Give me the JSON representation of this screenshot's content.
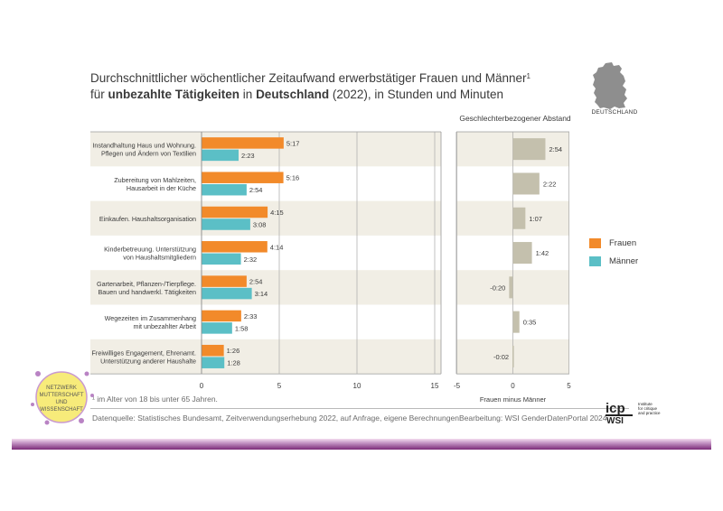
{
  "title": {
    "line1": "Durchschnittlicher wöchentlicher Zeitaufwand erwerbstätiger Frauen und Männer",
    "footnote_marker": "1",
    "line2_prefix": "für ",
    "line2_bold1": "unbezahlte Tätigkeiten",
    "line2_mid": " in ",
    "line2_bold2": "Deutschland",
    "line2_suffix": " (2022), in Stunden und Minuten"
  },
  "map": {
    "label": "DEUTSCHLAND"
  },
  "gap_panel": {
    "title": "Geschlechterbezogener Abstand",
    "xlabel": "Frauen minus Männer"
  },
  "legend": [
    {
      "label": "Frauen",
      "color": "#f28a2a"
    },
    {
      "label": "Männer",
      "color": "#5bbfc6"
    }
  ],
  "footnote": "¹ im Alter von 18 bis unter 65 Jahren.",
  "source": "Datenquelle: Statistisches Bundesamt, Zeitverwendungserhebung 2022, auf Anfrage, eigene Berechnungen",
  "credit": "Bearbeitung: WSI GenderDatenPortal 2024",
  "badge": {
    "lines": [
      "NETZWERK",
      "MUTTERSCHAFT",
      "UND",
      "WISSENSCHAFT"
    ]
  },
  "logo": {
    "main": "icp",
    "sub": "WSI",
    "tagline": [
      "Institute",
      "for critique",
      "and practice"
    ]
  },
  "colors": {
    "frauen": "#f28a2a",
    "maenner": "#5bbfc6",
    "gap": "#c4c0ad",
    "band": "#f1eee5"
  },
  "chart_data": [
    {
      "type": "bar",
      "orientation": "horizontal",
      "title": "Zeitaufwand in Stunden und Minuten",
      "categories": [
        [
          "Instandhaltung Haus und Wohnung.",
          "Pflegen und Ändern von Textilien"
        ],
        [
          "Zubereitung von Mahlzeiten,",
          "Hausarbeit in der Küche"
        ],
        [
          "Einkaufen. Haushaltsorganisation"
        ],
        [
          "Kinderbetreuung. Unterstützung",
          "von Haushaltsmitgliedern"
        ],
        [
          "Gartenarbeit, Pflanzen-/Tierpflege.",
          "Bauen und handwerkl. Tätigkeiten"
        ],
        [
          "Wegezeiten im Zusammenhang",
          "mit unbezahlter Arbeit"
        ],
        [
          "Freiwilliges Engagement, Ehrenamt.",
          "Unterstützung anderer Haushalte"
        ]
      ],
      "series": [
        {
          "name": "Frauen",
          "values": [
            5.283,
            5.267,
            4.25,
            4.233,
            2.9,
            2.55,
            1.433
          ],
          "labels": [
            "5:17",
            "5:16",
            "4:15",
            "4:14",
            "2:54",
            "2:33",
            "1:26"
          ]
        },
        {
          "name": "Männer",
          "values": [
            2.383,
            2.9,
            3.133,
            2.533,
            3.233,
            1.967,
            1.467
          ],
          "labels": [
            "2:23",
            "2:54",
            "3:08",
            "2:32",
            "3:14",
            "1:58",
            "1:28"
          ]
        }
      ],
      "xlim": [
        0,
        15
      ],
      "xticks": [
        0,
        5,
        10,
        15
      ]
    },
    {
      "type": "bar",
      "orientation": "horizontal",
      "title": "Geschlechterbezogener Abstand",
      "xlabel": "Frauen minus Männer",
      "values": [
        2.9,
        2.367,
        1.117,
        1.7,
        -0.333,
        0.583,
        -0.033
      ],
      "labels": [
        "2:54",
        "2:22",
        "1:07",
        "1:42",
        "-0:20",
        "0:35",
        "-0:02"
      ],
      "xlim": [
        -5,
        5
      ],
      "xticks": [
        -5,
        0,
        5
      ]
    }
  ]
}
